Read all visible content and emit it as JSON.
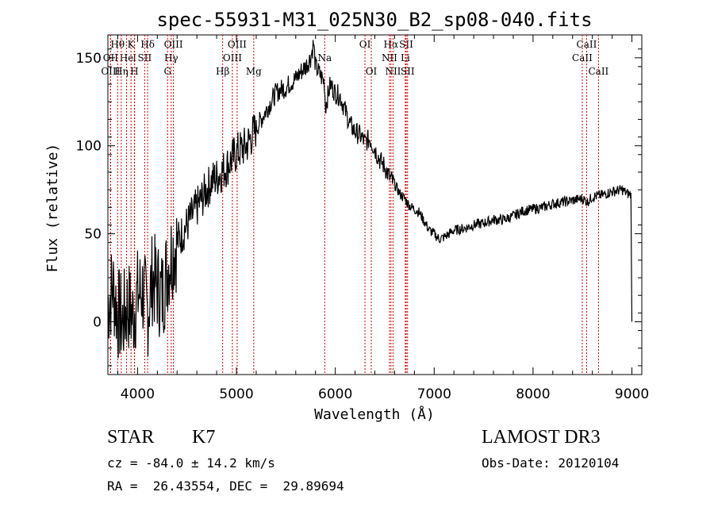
{
  "chart_data": {
    "type": "line",
    "title": "spec-55931-M31_025N30_B2_sp08-040.fits",
    "xlabel": "Wavelength (Å)",
    "ylabel": "Flux (relative)",
    "xlim": [
      3700,
      9100
    ],
    "ylim": [
      -30,
      163
    ],
    "xticks": [
      4000,
      5000,
      6000,
      7000,
      8000,
      9000
    ],
    "yticks": [
      0,
      50,
      100,
      150
    ],
    "series": [
      {
        "name": "spectrum",
        "x": [
          3700,
          3750,
          3800,
          3850,
          3900,
          3950,
          4000,
          4050,
          4100,
          4150,
          4200,
          4250,
          4300,
          4350,
          4400,
          4450,
          4500,
          4550,
          4600,
          4650,
          4700,
          4750,
          4800,
          4850,
          4900,
          4950,
          5000,
          5050,
          5100,
          5150,
          5200,
          5250,
          5300,
          5350,
          5400,
          5450,
          5500,
          5550,
          5600,
          5650,
          5700,
          5750,
          5780,
          5800,
          5850,
          5890,
          5900,
          5950,
          6000,
          6050,
          6100,
          6150,
          6200,
          6250,
          6300,
          6350,
          6400,
          6450,
          6500,
          6550,
          6600,
          6650,
          6700,
          6750,
          6800,
          6850,
          6900,
          6950,
          7000,
          7050,
          7100,
          7150,
          7200,
          7300,
          7400,
          7500,
          7600,
          7700,
          7800,
          7900,
          8000,
          8100,
          8200,
          8300,
          8400,
          8500,
          8550,
          8600,
          8700,
          8800,
          8900,
          8950,
          8990,
          9000
        ],
        "values": [
          10,
          20,
          5,
          0,
          10,
          3,
          15,
          18,
          5,
          25,
          20,
          15,
          30,
          40,
          45,
          50,
          55,
          60,
          65,
          70,
          75,
          80,
          82,
          85,
          88,
          92,
          96,
          98,
          100,
          105,
          110,
          115,
          120,
          125,
          130,
          132,
          133,
          136,
          138,
          142,
          145,
          150,
          158,
          145,
          140,
          136,
          122,
          135,
          130,
          128,
          120,
          112,
          108,
          106,
          102,
          104,
          98,
          92,
          88,
          82,
          78,
          73,
          70,
          66,
          64,
          62,
          57,
          52,
          50,
          47,
          48,
          50,
          52,
          53,
          55,
          56,
          58,
          58,
          60,
          63,
          64,
          65,
          67,
          68,
          69,
          70,
          68,
          71,
          72,
          74,
          75,
          73,
          72,
          0
        ]
      }
    ],
    "spectral_lines": [
      {
        "label": "Hθ",
        "x": 3798,
        "row": 0
      },
      {
        "label": "K",
        "x": 3934,
        "row": 0
      },
      {
        "label": "Hδ",
        "x": 4102,
        "row": 0
      },
      {
        "label": "OIII",
        "x": 4363,
        "row": 0
      },
      {
        "label": "OIII",
        "x": 5007,
        "row": 0
      },
      {
        "label": "OI",
        "x": 6300,
        "row": 0
      },
      {
        "label": "Hα",
        "x": 6563,
        "row": 0
      },
      {
        "label": "SII",
        "x": 6717,
        "row": 0
      },
      {
        "label": "CaII",
        "x": 8542,
        "row": 0
      },
      {
        "label": "OII",
        "x": 3727,
        "row": 1
      },
      {
        "label": "He",
        "x": 3889,
        "row": 1
      },
      {
        "label": "I",
        "x": 3970,
        "row": 1
      },
      {
        "label": "SII",
        "x": 4072,
        "row": 1
      },
      {
        "label": "Hγ",
        "x": 4340,
        "row": 1
      },
      {
        "label": "OIII",
        "x": 4959,
        "row": 1
      },
      {
        "label": "Na",
        "x": 5893,
        "row": 1
      },
      {
        "label": "NII",
        "x": 6548,
        "row": 1
      },
      {
        "label": "Li",
        "x": 6708,
        "row": 1
      },
      {
        "label": "CaII",
        "x": 8498,
        "row": 1
      },
      {
        "label": "OIII",
        "x": 3727,
        "row": 2
      },
      {
        "label": "Hη",
        "x": 3835,
        "row": 2
      },
      {
        "label": "H",
        "x": 3968,
        "row": 2
      },
      {
        "label": "G",
        "x": 4304,
        "row": 2
      },
      {
        "label": "Hβ",
        "x": 4861,
        "row": 2
      },
      {
        "label": "Mg",
        "x": 5175,
        "row": 2
      },
      {
        "label": "OI",
        "x": 6364,
        "row": 2
      },
      {
        "label": "NII",
        "x": 6584,
        "row": 2
      },
      {
        "label": "SII",
        "x": 6731,
        "row": 2
      },
      {
        "label": "CaII",
        "x": 8662,
        "row": 2
      }
    ]
  },
  "footer": {
    "class_label": "STAR",
    "subclass": "K7",
    "survey": "LAMOST DR3",
    "cz": "cz = -84.0 ± 14.2 km/s",
    "obs_date": "Obs-Date: 20120104",
    "coords": "RA =  26.43554, DEC =  29.89694"
  }
}
